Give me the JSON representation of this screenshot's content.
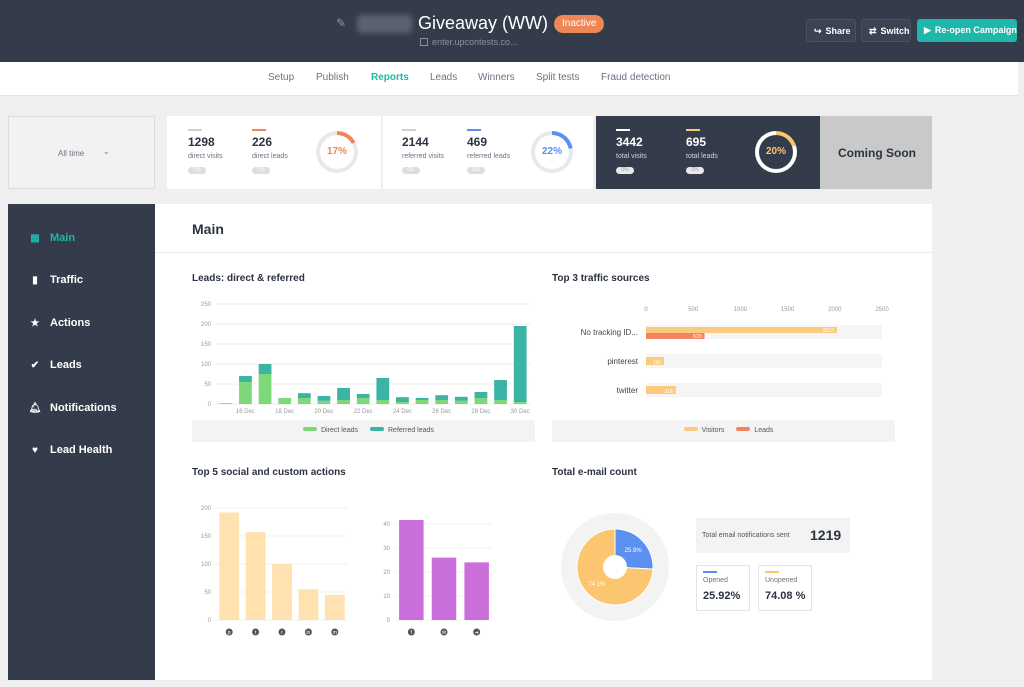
{
  "header": {
    "title": "Giveaway (WW)",
    "status": "Inactive",
    "url": "enter.upcontests.co...",
    "share_label": "Share",
    "switch_label": "Switch",
    "reopen_label": "Re-open Campaign"
  },
  "nav": {
    "tabs": [
      {
        "label": "Setup"
      },
      {
        "label": "Publish"
      },
      {
        "label": "Reports",
        "active": true
      },
      {
        "label": "Leads"
      },
      {
        "label": "Winners"
      },
      {
        "label": "Split tests"
      },
      {
        "label": "Fraud detection"
      }
    ]
  },
  "filter": {
    "label": "All time"
  },
  "stats": {
    "direct": {
      "visits": "1298",
      "visits_label": "direct visits",
      "leads": "226",
      "leads_label": "direct leads",
      "rate": "17%",
      "rate_value": 17,
      "pill1": "0%",
      "pill2": "0%"
    },
    "referred": {
      "visits": "2144",
      "visits_label": "referred visits",
      "leads": "469",
      "leads_label": "referred leads",
      "rate": "22%",
      "rate_value": 22,
      "pill1": "0%",
      "pill2": "0%"
    },
    "total": {
      "visits": "3442",
      "visits_label": "total visits",
      "leads": "695",
      "leads_label": "total leads",
      "rate": "20%",
      "rate_value": 20,
      "pill1": "0%",
      "pill2": "0%"
    },
    "coming_soon": "Coming Soon"
  },
  "sidebar": {
    "items": [
      {
        "label": "Main",
        "icon": "grid-icon",
        "active": true
      },
      {
        "label": "Traffic",
        "icon": "bar-chart-icon"
      },
      {
        "label": "Actions",
        "icon": "star-icon"
      },
      {
        "label": "Leads",
        "icon": "check-icon"
      },
      {
        "label": "Notifications",
        "icon": "bell-icon"
      },
      {
        "label": "Lead Health",
        "icon": "heart-icon"
      }
    ]
  },
  "main": {
    "title": "Main",
    "leads_title": "Leads: direct & referred",
    "traffic_title": "Top 3 traffic sources",
    "actions_title": "Top 5 social and custom actions",
    "email_title": "Total e-mail count"
  },
  "chart_data": [
    {
      "type": "bar",
      "stacked": true,
      "ylim": [
        0,
        250
      ],
      "yticks": [
        "250",
        "200",
        "150",
        "100",
        "50",
        "0"
      ],
      "xticks": [
        "16 Dec",
        "18 Dec",
        "20 Dec",
        "22 Dec",
        "24 Dec",
        "26 Dec",
        "28 Dec",
        "30 Dec"
      ],
      "series": [
        {
          "name": "Direct leads",
          "color": "#7dd87a",
          "values": [
            2,
            55,
            75,
            15,
            15,
            8,
            10,
            15,
            10,
            5,
            10,
            10,
            8,
            15,
            10,
            5
          ]
        },
        {
          "name": "Referred leads",
          "color": "#3bb3a5",
          "values": [
            0,
            15,
            25,
            0,
            12,
            12,
            30,
            10,
            55,
            12,
            5,
            12,
            10,
            15,
            50,
            190
          ]
        }
      ]
    },
    {
      "type": "bar",
      "orientation": "horizontal",
      "xlim": [
        0,
        2500
      ],
      "xticks": [
        "0",
        "500",
        "1000",
        "1500",
        "2000",
        "2500"
      ],
      "categories": [
        "No tracking ID...",
        "pinterest",
        "twitter"
      ],
      "series": [
        {
          "name": "Visitors",
          "color": "#fcca7d",
          "values": [
            2022,
            190,
            316
          ]
        },
        {
          "name": "Leads",
          "color": "#f4845f",
          "values": [
            620,
            0,
            0
          ]
        }
      ],
      "data_labels": [
        "2022",
        "620",
        "190",
        "316"
      ]
    },
    {
      "type": "bar",
      "ylim": [
        0,
        200
      ],
      "yticks": [
        "200",
        "150",
        "100",
        "50",
        "0"
      ],
      "categories": [
        "pinterest",
        "twitter",
        "reddit",
        "linkedin",
        "messenger"
      ],
      "icons": [
        "circle-icon",
        "twitter-icon",
        "pinterest-icon",
        "linkedin-icon",
        "messenger-icon"
      ],
      "values": [
        192,
        157,
        100,
        55,
        45
      ],
      "color": "#ffe2b0"
    },
    {
      "type": "bar",
      "ylim": [
        0,
        40
      ],
      "yticks": [
        "40",
        "30",
        "20",
        "10",
        "0"
      ],
      "categories": [
        "facebook",
        "email",
        "custom"
      ],
      "icons": [
        "facebook-icon",
        "email-icon",
        "arrow-icon"
      ],
      "values": [
        42,
        26,
        24
      ],
      "color": "#c96edb"
    },
    {
      "type": "pie",
      "slices": [
        {
          "name": "Opened",
          "value": 25.9,
          "label": "25.9%",
          "color": "#5b8ff0"
        },
        {
          "name": "Unopened",
          "value": 74.1,
          "label": "74.1%",
          "color": "#fcc670"
        }
      ]
    }
  ],
  "email": {
    "total_label": "Total email notifications sent",
    "total": "1219",
    "opened_label": "Opened",
    "opened_value": "25.92%",
    "unopened_label": "Unopened",
    "unopened_value": "74.08 %"
  },
  "colors": {
    "accent": "#1fb7a9",
    "dark": "#343c4b",
    "orange": "#ee8656",
    "blue": "#5b8ff0"
  }
}
